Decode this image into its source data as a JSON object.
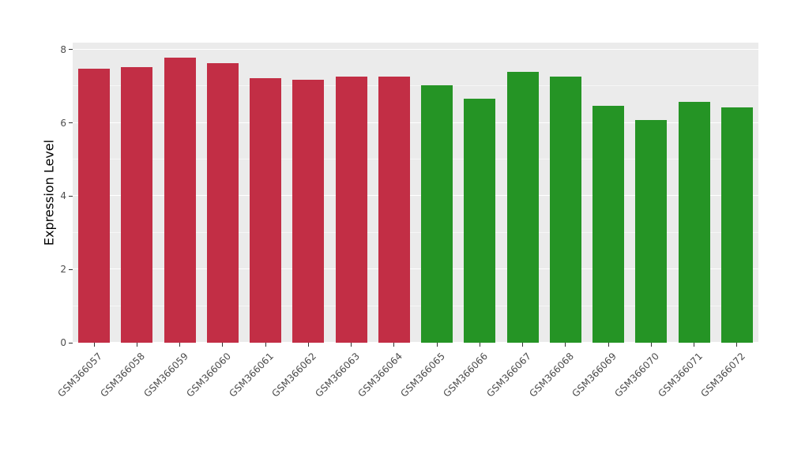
{
  "chart_data": {
    "type": "bar",
    "title": "",
    "xlabel": "",
    "ylabel": "Expression Level",
    "ylim": [
      0,
      8
    ],
    "yticks": [
      0,
      2,
      4,
      6,
      8
    ],
    "grid": "on",
    "legend": "none",
    "panel_background": "#EBEBEB",
    "gridline_color": "#FFFFFF",
    "categories": [
      "GSM366057",
      "GSM366058",
      "GSM366059",
      "GSM366060",
      "GSM366061",
      "GSM366062",
      "GSM366063",
      "GSM366064",
      "GSM366065",
      "GSM366066",
      "GSM366067",
      "GSM366068",
      "GSM366069",
      "GSM366070",
      "GSM366071",
      "GSM366072"
    ],
    "values": [
      7.48,
      7.52,
      7.78,
      7.64,
      7.23,
      7.18,
      7.27,
      7.27,
      7.03,
      6.67,
      7.4,
      7.27,
      6.47,
      6.08,
      6.57,
      6.43
    ],
    "bar_colors": [
      "#C22E45",
      "#C22E45",
      "#C22E45",
      "#C22E45",
      "#C22E45",
      "#C22E45",
      "#C22E45",
      "#C22E45",
      "#259425",
      "#259425",
      "#259425",
      "#259425",
      "#259425",
      "#259425",
      "#259425",
      "#259425"
    ],
    "group_colors": {
      "group1": "#C22E45",
      "group2": "#259425"
    }
  }
}
